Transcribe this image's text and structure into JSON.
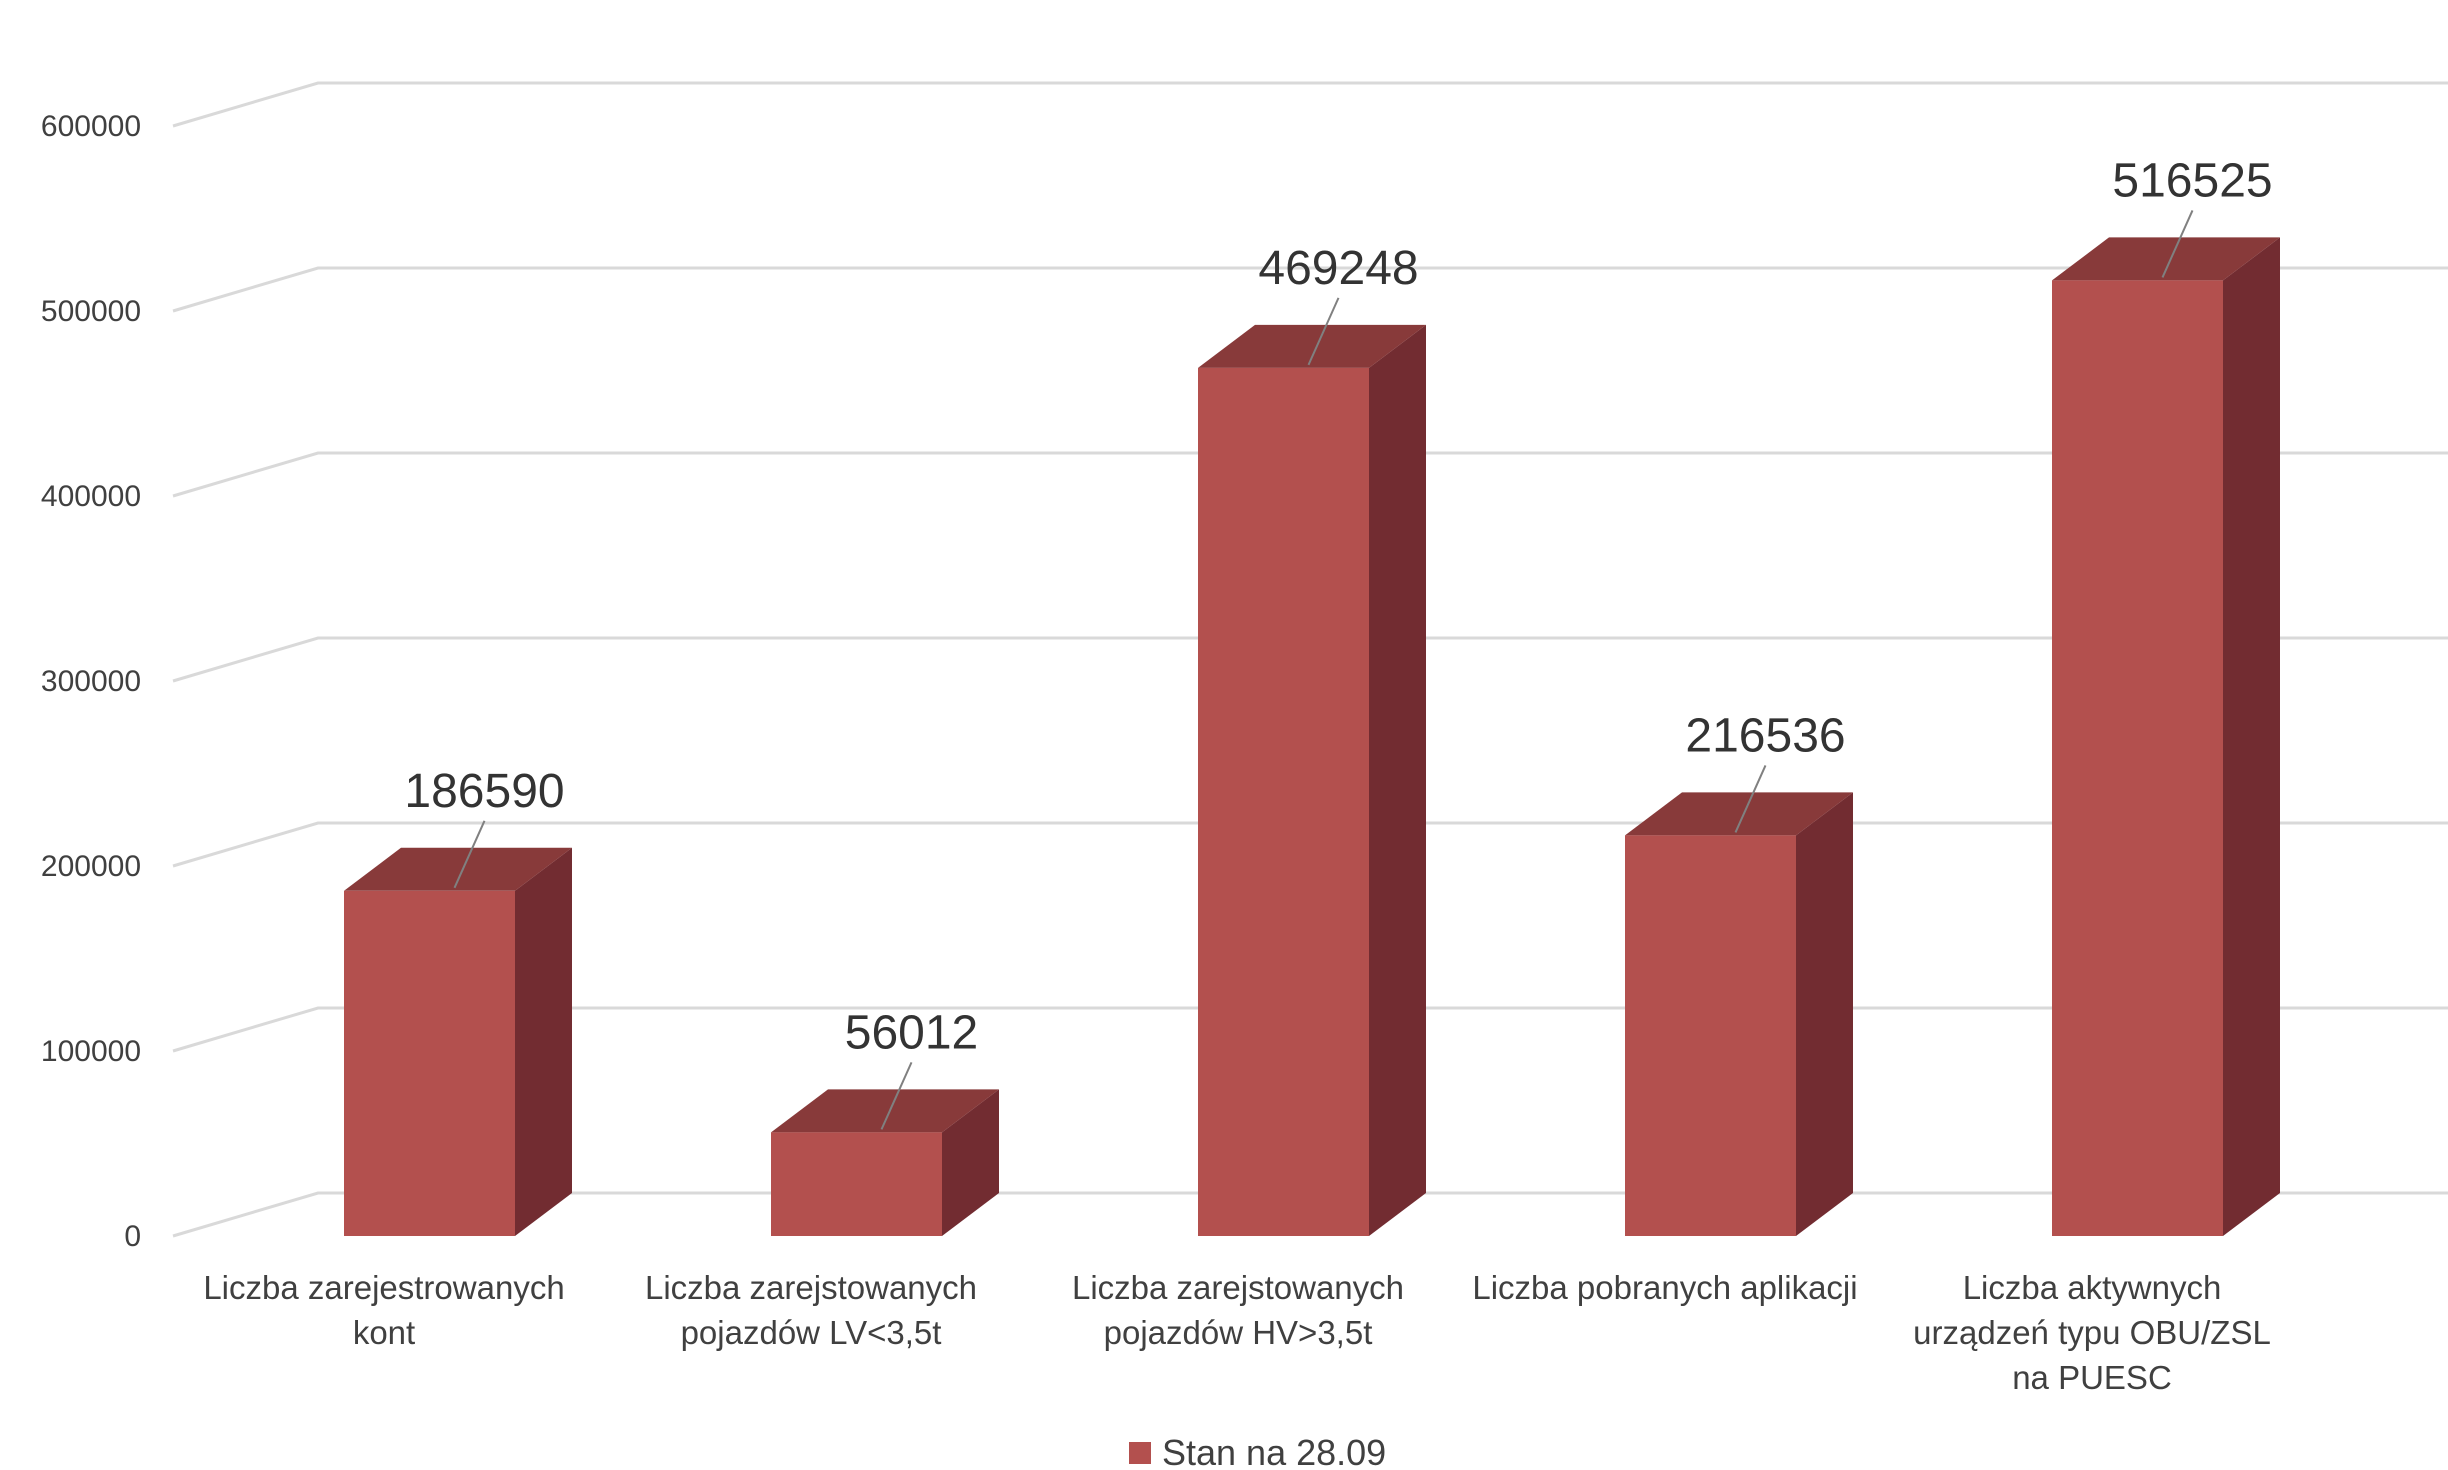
{
  "chart_data": {
    "type": "bar",
    "categories": [
      [
        "Liczba zarejestrowanych",
        "kont"
      ],
      [
        "Liczba zarejstowanych",
        "pojazdów LV<3,5t"
      ],
      [
        "Liczba zarejstowanych",
        "pojazdów HV>3,5t"
      ],
      [
        "Liczba pobranych aplikacji"
      ],
      [
        "Liczba aktywnych",
        "urządzeń typu OBU/ZSL",
        "na PUESC"
      ]
    ],
    "series": [
      {
        "name": "Stan na 28.09",
        "values": [
          186590,
          56012,
          469248,
          216536,
          516525
        ]
      }
    ],
    "ylim": [
      0,
      600000
    ],
    "yticks": [
      0,
      100000,
      200000,
      300000,
      400000,
      500000,
      600000
    ],
    "style": "3d-column",
    "grid": true,
    "legend_position": "bottom",
    "colors": {
      "bar_front": "#b3504e",
      "bar_top": "#883a3a",
      "bar_side": "#722c31",
      "grid": "#d9d9d9",
      "text": "#404040",
      "leader": "#808080"
    }
  }
}
